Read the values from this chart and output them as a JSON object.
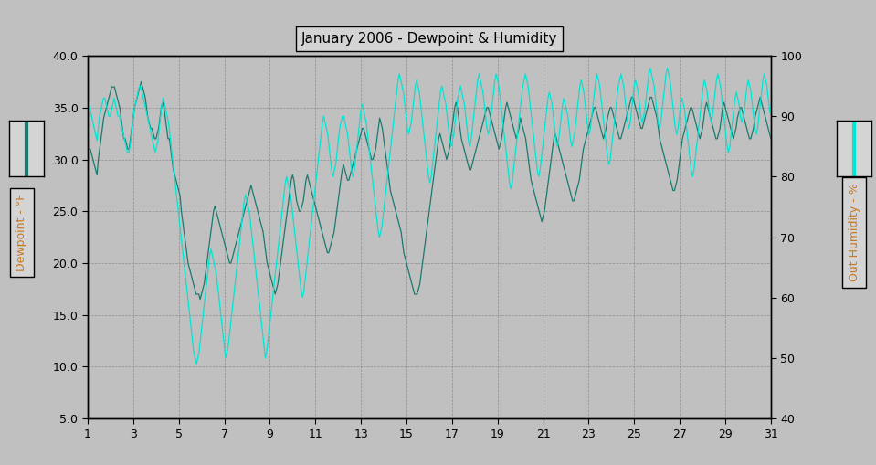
{
  "title": "January 2006 - Dewpoint & Humidity",
  "bg_color": "#c0c0c0",
  "plot_bg_color": "#c0c0c0",
  "dewpoint_color": "#1a7a6e",
  "humidity_color": "#00e5d4",
  "left_ylabel": "Dewpoint - °F",
  "right_ylabel": "Out Humidity - %",
  "ylim_left": [
    5.0,
    40.0
  ],
  "ylim_right": [
    40,
    100
  ],
  "yticks_left": [
    5.0,
    10.0,
    15.0,
    20.0,
    25.0,
    30.0,
    35.0,
    40.0
  ],
  "yticks_right": [
    40,
    50,
    60,
    70,
    80,
    90,
    100
  ],
  "xticks": [
    1,
    3,
    5,
    7,
    9,
    11,
    13,
    15,
    17,
    19,
    21,
    23,
    25,
    27,
    29,
    31
  ],
  "xlim": [
    1,
    31
  ],
  "dewpoint": [
    31,
    31,
    31,
    30.5,
    30,
    29.5,
    29,
    28.5,
    30,
    31,
    32,
    33,
    34,
    34.5,
    35,
    35.5,
    36,
    36.5,
    37,
    37,
    37,
    36.5,
    36,
    35.5,
    35,
    34,
    33,
    32,
    32,
    31.5,
    31,
    31,
    32,
    33,
    34,
    35,
    35.5,
    36,
    36.5,
    37,
    37.5,
    37,
    36.5,
    36,
    35,
    34,
    33.5,
    33,
    33,
    32.5,
    32,
    32,
    32.5,
    33,
    34,
    35,
    35.5,
    35,
    34,
    33,
    32,
    32,
    31,
    30,
    29,
    28.5,
    28,
    27.5,
    27,
    26.5,
    25,
    24,
    23,
    22,
    21,
    20,
    19.5,
    19,
    18.5,
    18,
    17.5,
    17,
    17,
    17,
    16.5,
    17,
    17.5,
    18,
    19,
    20,
    21,
    22,
    23,
    24,
    25,
    25.5,
    25,
    24.5,
    24,
    23.5,
    23,
    22.5,
    22,
    21.5,
    21,
    20.5,
    20,
    20,
    20.5,
    21,
    21.5,
    22,
    22.5,
    23,
    23.5,
    24,
    24.5,
    25,
    25.5,
    26,
    26.5,
    27,
    27.5,
    27,
    26.5,
    26,
    25.5,
    25,
    24.5,
    24,
    23.5,
    23,
    22,
    21,
    20,
    19.5,
    19,
    18.5,
    18,
    17.5,
    17,
    17.5,
    18,
    19,
    20,
    21,
    22,
    23,
    24,
    25,
    26,
    27,
    28,
    28.5,
    28,
    27,
    26,
    25.5,
    25,
    25,
    25.5,
    26,
    27,
    28,
    28.5,
    28,
    27.5,
    27,
    26.5,
    26,
    25.5,
    25,
    24.5,
    24,
    23.5,
    23,
    22.5,
    22,
    21.5,
    21,
    21,
    21.5,
    22,
    22.5,
    23,
    24,
    25,
    26,
    27,
    28,
    29,
    29.5,
    29,
    28.5,
    28,
    28,
    28.5,
    29,
    29.5,
    30,
    30.5,
    31,
    31.5,
    32,
    32.5,
    33,
    33,
    32.5,
    32,
    31.5,
    31,
    30.5,
    30,
    30,
    30.5,
    31,
    32,
    33,
    34,
    33.5,
    33,
    32,
    31,
    30,
    29,
    28,
    27,
    26.5,
    26,
    25.5,
    25,
    24.5,
    24,
    23.5,
    23,
    22,
    21,
    20.5,
    20,
    19.5,
    19,
    18.5,
    18,
    17.5,
    17,
    17,
    17,
    17.5,
    18,
    19,
    20,
    21,
    22,
    23,
    24,
    25,
    26,
    27,
    28,
    29,
    30,
    31,
    32,
    32.5,
    32,
    31.5,
    31,
    30.5,
    30,
    30.5,
    31,
    32,
    33,
    34,
    35,
    35.5,
    35,
    34,
    33,
    32,
    31.5,
    31,
    30.5,
    30,
    29.5,
    29,
    29,
    29.5,
    30,
    30.5,
    31,
    31.5,
    32,
    32.5,
    33,
    33.5,
    34,
    34.5,
    35,
    35,
    34.5,
    34,
    33.5,
    33,
    32.5,
    32,
    31.5,
    31,
    31.5,
    32,
    33,
    34,
    35,
    35.5,
    35,
    34.5,
    34,
    33.5,
    33,
    32.5,
    32,
    32.5,
    33,
    34,
    33.5,
    33,
    32.5,
    32,
    31,
    30,
    29,
    28,
    27.5,
    27,
    26.5,
    26,
    25.5,
    25,
    24.5,
    24,
    24.5,
    25,
    26,
    27,
    28,
    29,
    30,
    31,
    32,
    32.5,
    32,
    31.5,
    31,
    30.5,
    30,
    29.5,
    29,
    28.5,
    28,
    27.5,
    27,
    26.5,
    26,
    26,
    26.5,
    27,
    27.5,
    28,
    29,
    30,
    31,
    31.5,
    32,
    32.5,
    33,
    33.5,
    34,
    34.5,
    35,
    35,
    34.5,
    34,
    33.5,
    33,
    32.5,
    32,
    32.5,
    33,
    34,
    34.5,
    35,
    35,
    34.5,
    34,
    33.5,
    33,
    32.5,
    32,
    32,
    32.5,
    33,
    33.5,
    34,
    34.5,
    35,
    35.5,
    36,
    36,
    35.5,
    35,
    34.5,
    34,
    33.5,
    33,
    33,
    33.5,
    34,
    34.5,
    35,
    35.5,
    36,
    36,
    35.5,
    35,
    34.5,
    34,
    33,
    32,
    31.5,
    31,
    30.5,
    30,
    29.5,
    29,
    28.5,
    28,
    27.5,
    27,
    27,
    27.5,
    28,
    29,
    30,
    31,
    32,
    32.5,
    33,
    33.5,
    34,
    34.5,
    35,
    35,
    34.5,
    34,
    33.5,
    33,
    32.5,
    32,
    32.5,
    33,
    34,
    35,
    35.5,
    35,
    34.5,
    34,
    33.5,
    33,
    32.5,
    32,
    32,
    32.5,
    33,
    34,
    35,
    35.5,
    35,
    34.5,
    34,
    33.5,
    33,
    32.5,
    32,
    32.5,
    33,
    34,
    34.5,
    35,
    35,
    34.5,
    34,
    33.5,
    33,
    32.5,
    32,
    32,
    32.5,
    33,
    34,
    34.5,
    35,
    35.5,
    36,
    35.5,
    35,
    34.5,
    34,
    33.5,
    33,
    32.5,
    32
  ],
  "humidity": [
    93,
    92,
    91,
    90,
    89,
    88,
    87,
    86,
    88,
    90,
    91,
    92,
    93,
    93,
    92,
    91,
    90,
    90,
    91,
    92,
    93,
    92,
    91,
    90,
    90,
    89,
    88,
    87,
    86,
    85,
    84,
    84,
    85,
    87,
    89,
    91,
    92,
    93,
    94,
    95,
    95,
    94,
    93,
    92,
    91,
    90,
    89,
    88,
    87,
    86,
    85,
    84,
    85,
    86,
    88,
    90,
    92,
    93,
    92,
    91,
    90,
    89,
    87,
    85,
    83,
    81,
    79,
    77,
    75,
    73,
    71,
    69,
    67,
    65,
    63,
    61,
    59,
    57,
    55,
    53,
    51,
    50,
    49,
    50,
    51,
    53,
    55,
    57,
    59,
    61,
    63,
    65,
    67,
    68,
    67,
    66,
    65,
    64,
    62,
    60,
    58,
    56,
    54,
    52,
    50,
    51,
    52,
    54,
    56,
    58,
    60,
    62,
    64,
    66,
    68,
    70,
    72,
    74,
    76,
    77,
    76,
    75,
    74,
    72,
    70,
    68,
    66,
    64,
    62,
    60,
    58,
    56,
    54,
    52,
    50,
    51,
    53,
    55,
    57,
    59,
    61,
    63,
    65,
    67,
    69,
    71,
    73,
    75,
    77,
    79,
    80,
    79,
    78,
    77,
    75,
    73,
    71,
    69,
    67,
    65,
    63,
    61,
    60,
    61,
    63,
    65,
    67,
    69,
    71,
    73,
    75,
    77,
    79,
    81,
    83,
    85,
    87,
    89,
    90,
    89,
    88,
    87,
    85,
    83,
    81,
    80,
    81,
    82,
    84,
    86,
    88,
    89,
    90,
    90,
    89,
    88,
    87,
    85,
    83,
    81,
    80,
    81,
    83,
    85,
    87,
    89,
    91,
    92,
    91,
    90,
    89,
    87,
    85,
    83,
    81,
    79,
    77,
    75,
    73,
    71,
    70,
    71,
    72,
    74,
    76,
    78,
    80,
    82,
    84,
    86,
    88,
    90,
    92,
    94,
    96,
    97,
    96,
    95,
    94,
    92,
    90,
    88,
    87,
    88,
    89,
    91,
    93,
    95,
    96,
    95,
    94,
    92,
    90,
    88,
    86,
    84,
    82,
    80,
    79,
    80,
    82,
    84,
    86,
    88,
    90,
    92,
    94,
    95,
    94,
    93,
    92,
    90,
    88,
    86,
    85,
    86,
    87,
    89,
    91,
    93,
    94,
    95,
    94,
    93,
    92,
    90,
    88,
    86,
    85,
    86,
    88,
    90,
    92,
    94,
    96,
    97,
    96,
    95,
    94,
    92,
    90,
    88,
    87,
    88,
    90,
    92,
    94,
    96,
    97,
    96,
    95,
    93,
    91,
    89,
    87,
    85,
    83,
    81,
    79,
    78,
    79,
    81,
    83,
    85,
    87,
    89,
    91,
    93,
    95,
    96,
    97,
    96,
    95,
    93,
    91,
    89,
    87,
    85,
    83,
    81,
    80,
    81,
    83,
    85,
    87,
    89,
    91,
    93,
    94,
    93,
    92,
    90,
    88,
    86,
    85,
    86,
    88,
    90,
    92,
    93,
    92,
    91,
    90,
    88,
    86,
    85,
    86,
    87,
    89,
    91,
    93,
    95,
    96,
    95,
    94,
    92,
    90,
    88,
    87,
    88,
    90,
    92,
    94,
    96,
    97,
    96,
    95,
    93,
    91,
    89,
    87,
    85,
    83,
    82,
    83,
    85,
    87,
    89,
    91,
    93,
    95,
    96,
    97,
    96,
    95,
    93,
    91,
    89,
    88,
    89,
    91,
    93,
    95,
    96,
    95,
    94,
    92,
    90,
    89,
    90,
    91,
    93,
    95,
    97,
    98,
    97,
    96,
    95,
    93,
    91,
    89,
    88,
    89,
    91,
    93,
    95,
    97,
    98,
    97,
    96,
    94,
    92,
    90,
    88,
    87,
    88,
    90,
    92,
    93,
    92,
    91,
    89,
    87,
    85,
    83,
    81,
    80,
    81,
    83,
    85,
    87,
    89,
    91,
    93,
    95,
    96,
    95,
    94,
    92,
    90,
    89,
    90,
    92,
    94,
    96,
    97,
    96,
    95,
    93,
    91,
    89,
    87,
    85,
    84,
    85,
    87,
    89,
    91,
    93,
    94,
    93,
    92,
    90,
    89,
    90,
    91,
    93,
    95,
    96,
    95,
    94,
    92,
    90,
    88,
    87,
    88,
    90,
    92,
    94,
    96,
    97,
    96,
    95,
    93,
    91,
    90
  ]
}
